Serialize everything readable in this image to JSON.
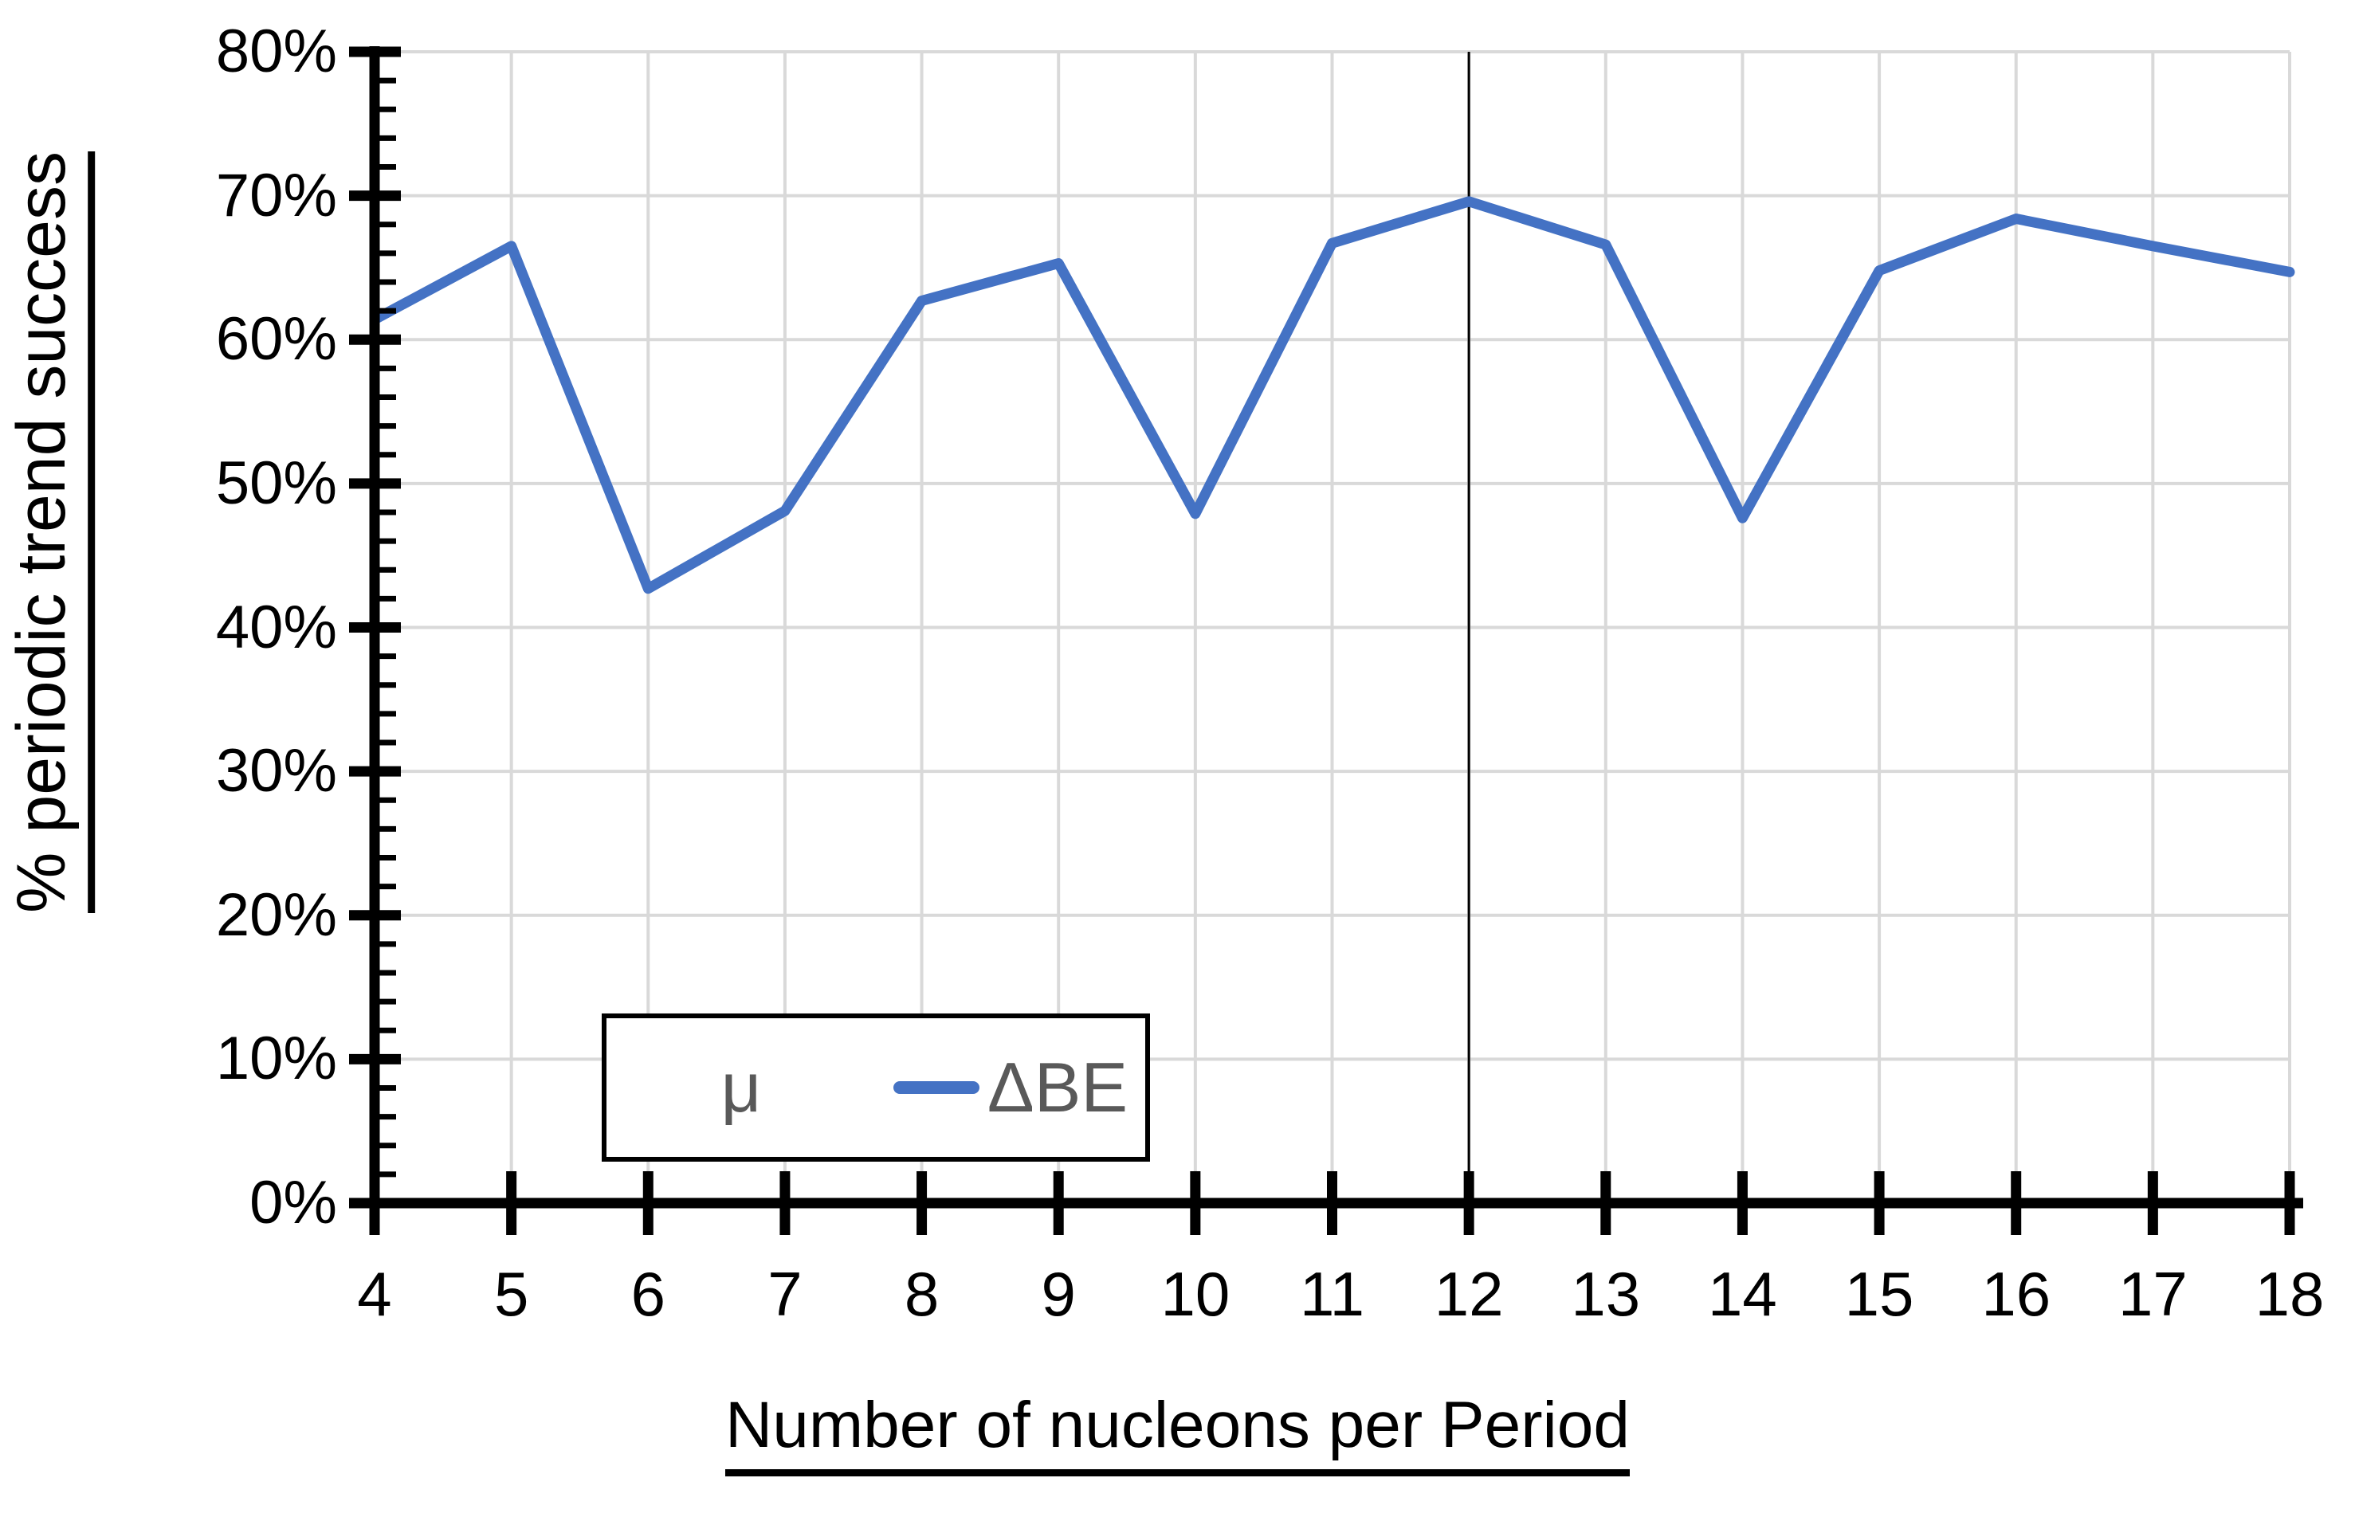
{
  "chart_data": {
    "type": "line",
    "title": "",
    "xlabel": "Number of nucleons per Period",
    "ylabel": "% periodic trend success",
    "x": [
      4,
      5,
      6,
      7,
      8,
      9,
      10,
      11,
      12,
      13,
      14,
      15,
      16,
      17,
      18
    ],
    "series": [
      {
        "name": "μ",
        "visible": false,
        "values": null
      },
      {
        "name": "ΔBE",
        "visible": true,
        "color": "#4472C4",
        "values": [
          61.4,
          66.5,
          42.7,
          48.1,
          62.7,
          65.3,
          47.9,
          66.7,
          69.6,
          66.6,
          47.6,
          64.8,
          68.4,
          66.5,
          64.7
        ]
      }
    ],
    "ylim": [
      0,
      80
    ],
    "y_ticks": [
      {
        "value": 0,
        "label": "0%"
      },
      {
        "value": 10,
        "label": "10%"
      },
      {
        "value": 20,
        "label": "20%"
      },
      {
        "value": 30,
        "label": "30%"
      },
      {
        "value": 40,
        "label": "40%"
      },
      {
        "value": 50,
        "label": "50%"
      },
      {
        "value": 60,
        "label": "60%"
      },
      {
        "value": 70,
        "label": "70%"
      },
      {
        "value": 80,
        "label": "80%"
      }
    ],
    "y_minor_tick_step": 2,
    "x_ticks": [
      {
        "value": 4,
        "label": "4"
      },
      {
        "value": 5,
        "label": "5"
      },
      {
        "value": 6,
        "label": "6"
      },
      {
        "value": 7,
        "label": "7"
      },
      {
        "value": 8,
        "label": "8"
      },
      {
        "value": 9,
        "label": "9"
      },
      {
        "value": 10,
        "label": "10"
      },
      {
        "value": 11,
        "label": "11"
      },
      {
        "value": 12,
        "label": "12"
      },
      {
        "value": 13,
        "label": "13"
      },
      {
        "value": 14,
        "label": "14"
      },
      {
        "value": 15,
        "label": "15"
      },
      {
        "value": 16,
        "label": "16"
      },
      {
        "value": 17,
        "label": "17"
      },
      {
        "value": 18,
        "label": "18"
      }
    ],
    "grid": true,
    "annotations": [
      {
        "type": "vline",
        "x": 12,
        "color": "#000000"
      }
    ],
    "legend": {
      "position": "inside-bottom-left",
      "entries": [
        {
          "label": "μ",
          "marker": "none"
        },
        {
          "label": "ΔBE",
          "marker": "line",
          "color": "#4472C4"
        }
      ]
    }
  },
  "colors": {
    "series_line": "#4472C4",
    "gridline": "#D9D9D9",
    "axis": "#000000",
    "legend_text": "#595959",
    "vline": "#000000",
    "background": "#FFFFFF"
  }
}
